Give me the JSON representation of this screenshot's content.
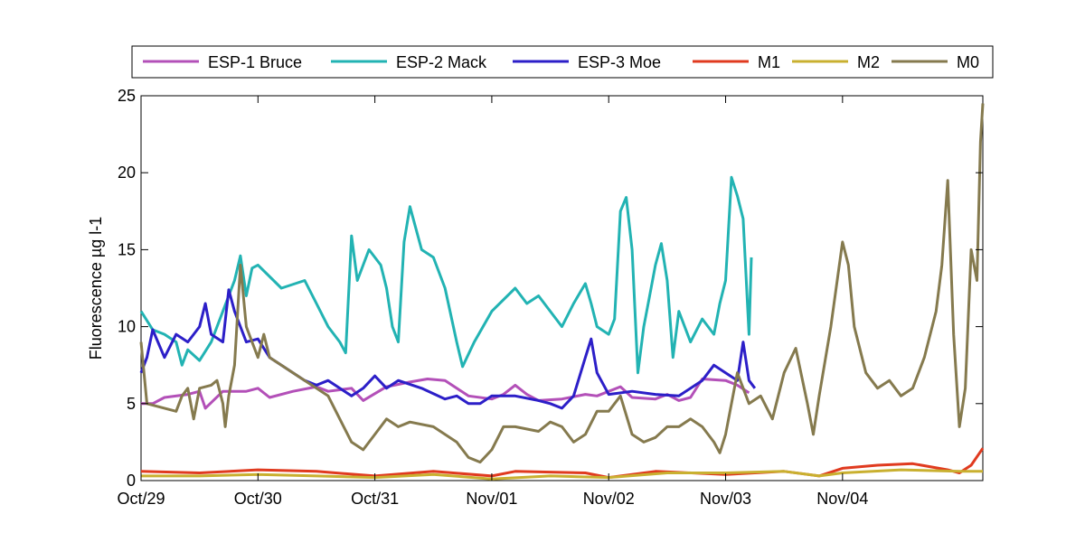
{
  "chart_data": {
    "type": "line",
    "title": "",
    "xlabel": "",
    "ylabel": "Fluorescence µg l-1",
    "ylim": [
      0,
      25
    ],
    "yticks": [
      0,
      5,
      10,
      15,
      20,
      25
    ],
    "xlim": [
      0,
      7.2
    ],
    "xticks": [
      {
        "x": 0,
        "label": "Oct/29"
      },
      {
        "x": 1,
        "label": "Oct/30"
      },
      {
        "x": 2,
        "label": "Oct/31"
      },
      {
        "x": 3,
        "label": "Nov/01"
      },
      {
        "x": 4,
        "label": "Nov/02"
      },
      {
        "x": 5,
        "label": "Nov/03"
      },
      {
        "x": 6,
        "label": "Nov/04"
      }
    ],
    "grid": false,
    "legend_position": "top",
    "series": [
      {
        "name": "ESP-1 Bruce",
        "color": "#b350b8",
        "points": [
          [
            0,
            5.0
          ],
          [
            0.1,
            5.0
          ],
          [
            0.2,
            5.4
          ],
          [
            0.4,
            5.6
          ],
          [
            0.5,
            5.8
          ],
          [
            0.55,
            4.7
          ],
          [
            0.7,
            5.8
          ],
          [
            0.9,
            5.8
          ],
          [
            1.0,
            6.0
          ],
          [
            1.1,
            5.4
          ],
          [
            1.3,
            5.8
          ],
          [
            1.5,
            6.1
          ],
          [
            1.6,
            5.8
          ],
          [
            1.8,
            6.0
          ],
          [
            1.9,
            5.2
          ],
          [
            2.1,
            6.1
          ],
          [
            2.3,
            6.4
          ],
          [
            2.45,
            6.6
          ],
          [
            2.6,
            6.5
          ],
          [
            2.8,
            5.5
          ],
          [
            3.0,
            5.3
          ],
          [
            3.1,
            5.6
          ],
          [
            3.2,
            6.2
          ],
          [
            3.3,
            5.6
          ],
          [
            3.4,
            5.2
          ],
          [
            3.6,
            5.3
          ],
          [
            3.8,
            5.6
          ],
          [
            3.9,
            5.5
          ],
          [
            4.1,
            6.1
          ],
          [
            4.2,
            5.4
          ],
          [
            4.4,
            5.3
          ],
          [
            4.5,
            5.6
          ],
          [
            4.6,
            5.2
          ],
          [
            4.7,
            5.4
          ],
          [
            4.8,
            6.6
          ],
          [
            5.0,
            6.5
          ],
          [
            5.1,
            6.2
          ],
          [
            5.2,
            5.7
          ]
        ]
      },
      {
        "name": "ESP-2 Mack",
        "color": "#22b3b3",
        "points": [
          [
            0,
            11.0
          ],
          [
            0.1,
            9.8
          ],
          [
            0.2,
            9.5
          ],
          [
            0.3,
            9.0
          ],
          [
            0.35,
            7.5
          ],
          [
            0.4,
            8.5
          ],
          [
            0.5,
            7.8
          ],
          [
            0.6,
            9.0
          ],
          [
            0.8,
            13.0
          ],
          [
            0.85,
            14.6
          ],
          [
            0.9,
            12.0
          ],
          [
            0.95,
            13.8
          ],
          [
            1.0,
            14.0
          ],
          [
            1.2,
            12.5
          ],
          [
            1.4,
            13.0
          ],
          [
            1.5,
            11.5
          ],
          [
            1.6,
            10.0
          ],
          [
            1.7,
            9.0
          ],
          [
            1.75,
            8.3
          ],
          [
            1.8,
            15.9
          ],
          [
            1.85,
            13.0
          ],
          [
            1.95,
            15.0
          ],
          [
            2.05,
            14.0
          ],
          [
            2.1,
            12.5
          ],
          [
            2.15,
            10.0
          ],
          [
            2.2,
            9.0
          ],
          [
            2.25,
            15.5
          ],
          [
            2.3,
            17.8
          ],
          [
            2.4,
            15.0
          ],
          [
            2.5,
            14.5
          ],
          [
            2.6,
            12.5
          ],
          [
            2.7,
            9.0
          ],
          [
            2.75,
            7.4
          ],
          [
            2.85,
            9.0
          ],
          [
            3.0,
            11.0
          ],
          [
            3.2,
            12.5
          ],
          [
            3.3,
            11.5
          ],
          [
            3.4,
            12.0
          ],
          [
            3.5,
            11.0
          ],
          [
            3.6,
            10.0
          ],
          [
            3.7,
            11.5
          ],
          [
            3.8,
            12.8
          ],
          [
            3.85,
            11.5
          ],
          [
            3.9,
            10.0
          ],
          [
            4.0,
            9.5
          ],
          [
            4.05,
            10.5
          ],
          [
            4.1,
            17.5
          ],
          [
            4.15,
            18.4
          ],
          [
            4.2,
            15.0
          ],
          [
            4.25,
            7.0
          ],
          [
            4.3,
            10.0
          ],
          [
            4.35,
            12.0
          ],
          [
            4.4,
            14.0
          ],
          [
            4.45,
            15.4
          ],
          [
            4.5,
            13.0
          ],
          [
            4.55,
            8.0
          ],
          [
            4.6,
            11.0
          ],
          [
            4.7,
            9.0
          ],
          [
            4.8,
            10.5
          ],
          [
            4.9,
            9.5
          ],
          [
            4.95,
            11.5
          ],
          [
            5.0,
            13.0
          ],
          [
            5.05,
            19.7
          ],
          [
            5.1,
            18.5
          ],
          [
            5.15,
            17.0
          ],
          [
            5.2,
            9.5
          ],
          [
            5.22,
            14.5
          ]
        ]
      },
      {
        "name": "ESP-3 Moe",
        "color": "#2c1fc8",
        "points": [
          [
            0,
            7.0
          ],
          [
            0.05,
            8.0
          ],
          [
            0.1,
            9.8
          ],
          [
            0.2,
            8.0
          ],
          [
            0.3,
            9.5
          ],
          [
            0.4,
            9.0
          ],
          [
            0.5,
            10.0
          ],
          [
            0.55,
            11.5
          ],
          [
            0.6,
            9.5
          ],
          [
            0.7,
            9.0
          ],
          [
            0.75,
            12.4
          ],
          [
            0.8,
            11.0
          ],
          [
            0.9,
            9.0
          ],
          [
            1.0,
            9.2
          ],
          [
            1.1,
            8.0
          ],
          [
            1.2,
            7.5
          ],
          [
            1.3,
            7.0
          ],
          [
            1.4,
            6.5
          ],
          [
            1.5,
            6.2
          ],
          [
            1.6,
            6.5
          ],
          [
            1.7,
            6.0
          ],
          [
            1.8,
            5.5
          ],
          [
            1.9,
            6.0
          ],
          [
            2.0,
            6.8
          ],
          [
            2.1,
            6.0
          ],
          [
            2.2,
            6.5
          ],
          [
            2.4,
            6.0
          ],
          [
            2.6,
            5.3
          ],
          [
            2.7,
            5.5
          ],
          [
            2.8,
            5.0
          ],
          [
            2.9,
            5.0
          ],
          [
            3.0,
            5.5
          ],
          [
            3.2,
            5.5
          ],
          [
            3.4,
            5.2
          ],
          [
            3.5,
            5.0
          ],
          [
            3.6,
            4.7
          ],
          [
            3.7,
            5.5
          ],
          [
            3.8,
            8.0
          ],
          [
            3.85,
            9.2
          ],
          [
            3.9,
            7.0
          ],
          [
            4.0,
            5.6
          ],
          [
            4.2,
            5.8
          ],
          [
            4.4,
            5.6
          ],
          [
            4.6,
            5.5
          ],
          [
            4.8,
            6.5
          ],
          [
            4.9,
            7.5
          ],
          [
            5.0,
            7.0
          ],
          [
            5.1,
            6.5
          ],
          [
            5.15,
            9.0
          ],
          [
            5.2,
            6.5
          ],
          [
            5.25,
            6.0
          ]
        ]
      },
      {
        "name": "M1",
        "color": "#e03a1f",
        "points": [
          [
            0,
            0.6
          ],
          [
            0.5,
            0.5
          ],
          [
            1.0,
            0.7
          ],
          [
            1.5,
            0.6
          ],
          [
            2.0,
            0.3
          ],
          [
            2.5,
            0.6
          ],
          [
            3.0,
            0.3
          ],
          [
            3.2,
            0.6
          ],
          [
            3.8,
            0.5
          ],
          [
            4.0,
            0.2
          ],
          [
            4.4,
            0.6
          ],
          [
            5.0,
            0.4
          ],
          [
            5.5,
            0.6
          ],
          [
            5.8,
            0.3
          ],
          [
            6.0,
            0.8
          ],
          [
            6.3,
            1.0
          ],
          [
            6.6,
            1.1
          ],
          [
            6.9,
            0.7
          ],
          [
            7.0,
            0.5
          ],
          [
            7.1,
            1.0
          ],
          [
            7.2,
            2.1
          ]
        ]
      },
      {
        "name": "M2",
        "color": "#c9b030",
        "points": [
          [
            0,
            0.3
          ],
          [
            0.5,
            0.3
          ],
          [
            1.0,
            0.4
          ],
          [
            1.5,
            0.3
          ],
          [
            2.0,
            0.2
          ],
          [
            2.5,
            0.4
          ],
          [
            3.0,
            0.1
          ],
          [
            3.5,
            0.3
          ],
          [
            4.0,
            0.2
          ],
          [
            4.5,
            0.5
          ],
          [
            5.0,
            0.5
          ],
          [
            5.5,
            0.6
          ],
          [
            5.8,
            0.3
          ],
          [
            6.0,
            0.5
          ],
          [
            6.5,
            0.7
          ],
          [
            7.0,
            0.6
          ],
          [
            7.2,
            0.6
          ]
        ]
      },
      {
        "name": "M0",
        "color": "#857a4e",
        "points": [
          [
            0,
            9.0
          ],
          [
            0.05,
            5.0
          ],
          [
            0.2,
            4.7
          ],
          [
            0.3,
            4.5
          ],
          [
            0.35,
            5.5
          ],
          [
            0.4,
            6.0
          ],
          [
            0.45,
            4.0
          ],
          [
            0.5,
            6.0
          ],
          [
            0.6,
            6.2
          ],
          [
            0.65,
            6.5
          ],
          [
            0.7,
            5.0
          ],
          [
            0.72,
            3.5
          ],
          [
            0.75,
            5.5
          ],
          [
            0.8,
            7.5
          ],
          [
            0.85,
            14.0
          ],
          [
            0.9,
            10.0
          ],
          [
            0.95,
            9.0
          ],
          [
            1.0,
            8.0
          ],
          [
            1.05,
            9.5
          ],
          [
            1.1,
            8.0
          ],
          [
            1.2,
            7.5
          ],
          [
            1.3,
            7.0
          ],
          [
            1.4,
            6.5
          ],
          [
            1.5,
            6.0
          ],
          [
            1.6,
            5.5
          ],
          [
            1.7,
            4.0
          ],
          [
            1.8,
            2.5
          ],
          [
            1.9,
            2.0
          ],
          [
            2.0,
            3.0
          ],
          [
            2.1,
            4.0
          ],
          [
            2.2,
            3.5
          ],
          [
            2.3,
            3.8
          ],
          [
            2.5,
            3.5
          ],
          [
            2.6,
            3.0
          ],
          [
            2.7,
            2.5
          ],
          [
            2.8,
            1.5
          ],
          [
            2.9,
            1.2
          ],
          [
            3.0,
            2.0
          ],
          [
            3.1,
            3.5
          ],
          [
            3.2,
            3.5
          ],
          [
            3.4,
            3.2
          ],
          [
            3.5,
            3.8
          ],
          [
            3.6,
            3.5
          ],
          [
            3.7,
            2.5
          ],
          [
            3.8,
            3.0
          ],
          [
            3.9,
            4.5
          ],
          [
            4.0,
            4.5
          ],
          [
            4.1,
            5.5
          ],
          [
            4.2,
            3.0
          ],
          [
            4.3,
            2.5
          ],
          [
            4.4,
            2.8
          ],
          [
            4.5,
            3.5
          ],
          [
            4.6,
            3.5
          ],
          [
            4.7,
            4.0
          ],
          [
            4.8,
            3.5
          ],
          [
            4.9,
            2.5
          ],
          [
            4.95,
            1.8
          ],
          [
            5.0,
            3.0
          ],
          [
            5.1,
            7.0
          ],
          [
            5.2,
            5.0
          ],
          [
            5.3,
            5.5
          ],
          [
            5.4,
            4.0
          ],
          [
            5.5,
            7.0
          ],
          [
            5.6,
            8.6
          ],
          [
            5.7,
            5.0
          ],
          [
            5.75,
            3.0
          ],
          [
            5.8,
            5.5
          ],
          [
            5.9,
            10.0
          ],
          [
            6.0,
            15.5
          ],
          [
            6.05,
            14.0
          ],
          [
            6.1,
            10.0
          ],
          [
            6.2,
            7.0
          ],
          [
            6.3,
            6.0
          ],
          [
            6.4,
            6.5
          ],
          [
            6.5,
            5.5
          ],
          [
            6.6,
            6.0
          ],
          [
            6.7,
            8.0
          ],
          [
            6.8,
            11.0
          ],
          [
            6.85,
            14.0
          ],
          [
            6.9,
            19.5
          ],
          [
            6.95,
            9.5
          ],
          [
            7.0,
            3.5
          ],
          [
            7.05,
            6.0
          ],
          [
            7.1,
            15.0
          ],
          [
            7.15,
            13.0
          ],
          [
            7.18,
            22.0
          ],
          [
            7.2,
            24.5
          ]
        ]
      }
    ]
  }
}
